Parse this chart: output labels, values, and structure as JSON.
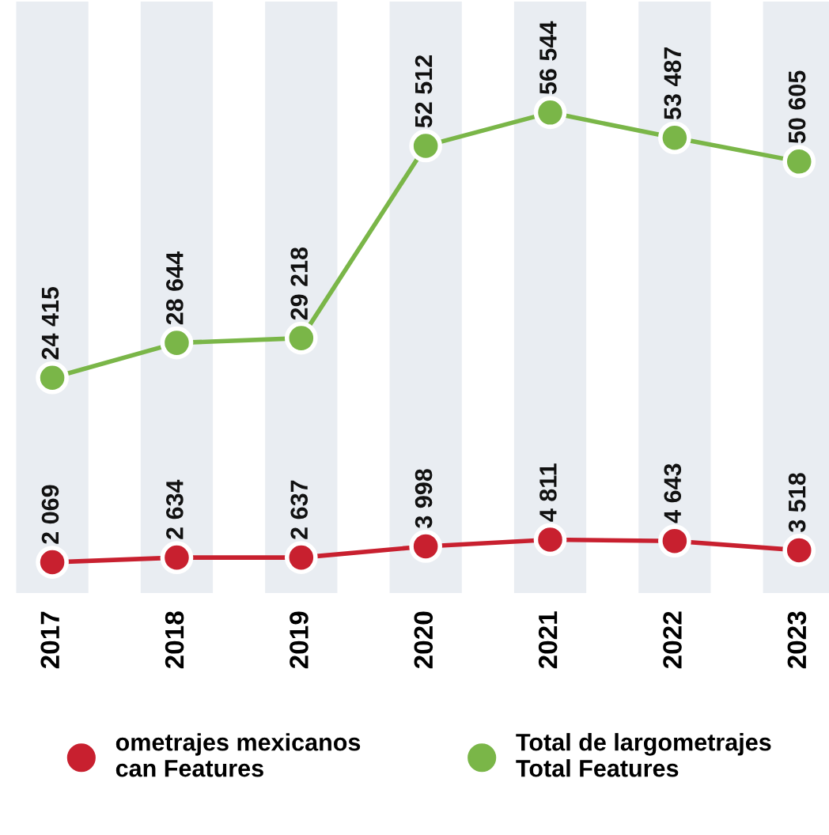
{
  "chart_data": {
    "type": "line",
    "categories": [
      "2017",
      "2018",
      "2019",
      "2020",
      "2021",
      "2022",
      "2023"
    ],
    "series": [
      {
        "name": "ometrajes mexicanos\ncan Features",
        "color": "#c8202f",
        "values": [
          2069,
          2634,
          2637,
          3998,
          4811,
          4643,
          3518
        ],
        "value_labels": [
          "2 069",
          "2 634",
          "2 637",
          "3 998",
          "4 811",
          "4 643",
          "3 518"
        ]
      },
      {
        "name": "Total de largometrajes\nTotal Features",
        "color": "#7ab648",
        "values": [
          24415,
          28644,
          29218,
          52512,
          56544,
          53487,
          50605
        ],
        "value_labels": [
          "24 415",
          "28 644",
          "29 218",
          "52 512",
          "56 544",
          "53 487",
          "50 605"
        ]
      }
    ],
    "tick_labels": "x",
    "marker": "circle",
    "line_style": "solid",
    "legend": "bottom",
    "grid": false
  }
}
